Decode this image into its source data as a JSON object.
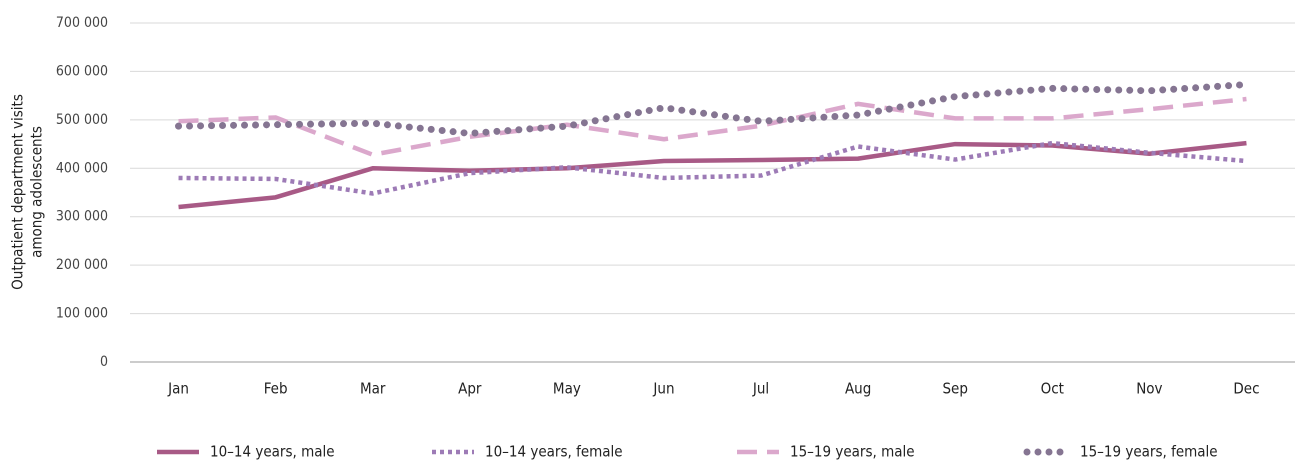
{
  "chart_data": {
    "type": "line",
    "y_label": [
      "Outpatient department visits",
      "among adolescents"
    ],
    "categories": [
      "Jan",
      "Feb",
      "Mar",
      "Apr",
      "May",
      "Jun",
      "Jul",
      "Aug",
      "Sep",
      "Oct",
      "Nov",
      "Dec"
    ],
    "series": [
      {
        "name": "10–14 years, male",
        "color": "#a85a86",
        "style": "solid",
        "values": [
          320000,
          340000,
          400000,
          395000,
          400000,
          415000,
          417000,
          420000,
          450000,
          447000,
          430000,
          452000
        ]
      },
      {
        "name": "10–14 years, female",
        "color": "#9d7bb6",
        "style": "dotted",
        "values": [
          380000,
          378000,
          348000,
          390000,
          402000,
          380000,
          385000,
          445000,
          418000,
          452000,
          432000,
          415000
        ]
      },
      {
        "name": "15–19 years, male",
        "color": "#dba8cc",
        "style": "dashed",
        "values": [
          497000,
          505000,
          428000,
          465000,
          490000,
          460000,
          488000,
          533000,
          503000,
          503000,
          522000,
          543000
        ]
      },
      {
        "name": "15–19 years, female",
        "color": "#857592",
        "style": "dots",
        "values": [
          487000,
          490000,
          493000,
          472000,
          487000,
          525000,
          497000,
          510000,
          548000,
          565000,
          560000,
          573000
        ]
      }
    ],
    "ylim": [
      0,
      700000
    ],
    "yticks": [
      {
        "value": 0,
        "label": "0"
      },
      {
        "value": 100000,
        "label": "100 000"
      },
      {
        "value": 200000,
        "label": "200 000"
      },
      {
        "value": 300000,
        "label": "300 000"
      },
      {
        "value": 400000,
        "label": "400 000"
      },
      {
        "value": 500000,
        "label": "500 000"
      },
      {
        "value": 600000,
        "label": "600 000"
      },
      {
        "value": 700000,
        "label": "700 000"
      }
    ],
    "grid": true,
    "legend": "bottom"
  }
}
